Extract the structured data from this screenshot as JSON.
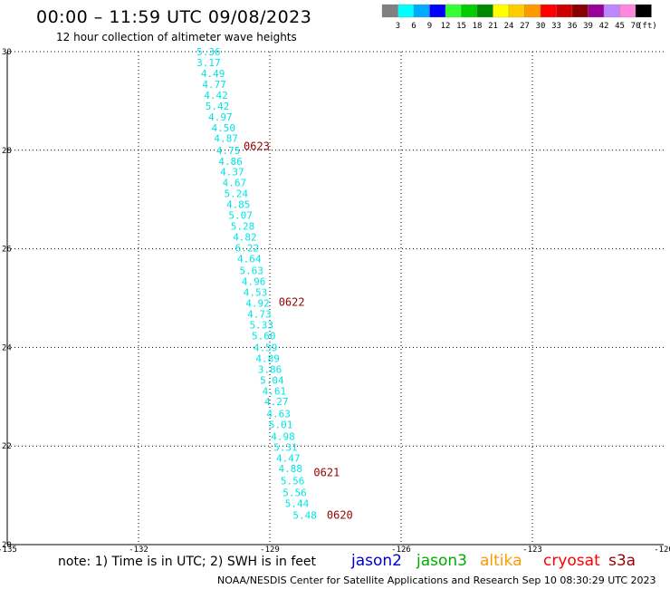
{
  "title": "00:00 – 11:59 UTC 09/08/2023",
  "subtitle": "12 hour collection of altimeter wave heights",
  "note": "note: 1) Time is in UTC; 2) SWH is in feet",
  "credit": "NOAA/NESDIS Center for Satellite Applications and Research   Sep 10 08:30:29 UTC 2023",
  "satellites": [
    {
      "name": "jason2",
      "color": "#0000cc"
    },
    {
      "name": "jason3",
      "color": "#00aa00"
    },
    {
      "name": "altika",
      "color": "#ff9900"
    },
    {
      "name": "cryosat",
      "color": "#ff0000"
    },
    {
      "name": "s3a",
      "color": "#990000"
    }
  ],
  "colorbar": {
    "unit": "(ft)",
    "colors": [
      "#808080",
      "#00ffff",
      "#00aaff",
      "#0000ff",
      "#33ff33",
      "#00cc00",
      "#008800",
      "#ffff00",
      "#ffcc00",
      "#ff9900",
      "#ff0000",
      "#cc0000",
      "#880000",
      "#990099",
      "#bb88ff",
      "#ff88dd",
      "#000000"
    ],
    "labels": [
      "3",
      "6",
      "9",
      "12",
      "15",
      "18",
      "21",
      "24",
      "27",
      "30",
      "33",
      "36",
      "39",
      "42",
      "45",
      "70"
    ]
  },
  "chart_data": {
    "type": "scatter",
    "title": "00:00 – 11:59 UTC 09/08/2023",
    "subtitle": "12 hour collection of altimeter wave heights",
    "xlabel": "",
    "ylabel": "",
    "xlim": [
      -135,
      -120
    ],
    "ylim": [
      20,
      30
    ],
    "xticks": [
      -135,
      -132,
      -129,
      -126,
      -123,
      -120
    ],
    "xtick_labels": [
      "-135",
      "-132",
      "-129",
      "-126",
      "-123",
      "-120"
    ],
    "yticks": [
      20,
      22,
      24,
      26,
      28,
      30
    ],
    "ytick_labels": [
      "20",
      "22",
      "24",
      "26",
      "28",
      "30"
    ],
    "grid": true,
    "points": [
      {
        "x": -130.4,
        "y": 30.0,
        "label": "5.36"
      },
      {
        "x": -130.4,
        "y": 29.78,
        "label": "3.17"
      },
      {
        "x": -130.3,
        "y": 29.56,
        "label": "4.49"
      },
      {
        "x": -130.27,
        "y": 29.34,
        "label": "4.77"
      },
      {
        "x": -130.23,
        "y": 29.12,
        "label": "4.42"
      },
      {
        "x": -130.2,
        "y": 28.9,
        "label": "5.42"
      },
      {
        "x": -130.13,
        "y": 28.68,
        "label": "4.97"
      },
      {
        "x": -130.06,
        "y": 28.46,
        "label": "4.50"
      },
      {
        "x": -130.0,
        "y": 28.24,
        "label": "4.87"
      },
      {
        "x": -129.95,
        "y": 28.0,
        "label": "4.75"
      },
      {
        "x": -129.9,
        "y": 27.78,
        "label": "4.86"
      },
      {
        "x": -129.86,
        "y": 27.56,
        "label": "4.37"
      },
      {
        "x": -129.81,
        "y": 27.34,
        "label": "4.67"
      },
      {
        "x": -129.77,
        "y": 27.12,
        "label": "5.24"
      },
      {
        "x": -129.72,
        "y": 26.9,
        "label": "4.85"
      },
      {
        "x": -129.67,
        "y": 26.68,
        "label": "5.07"
      },
      {
        "x": -129.62,
        "y": 26.46,
        "label": "5.28"
      },
      {
        "x": -129.57,
        "y": 26.24,
        "label": "4.82"
      },
      {
        "x": -129.52,
        "y": 26.02,
        "label": "6.22"
      },
      {
        "x": -129.47,
        "y": 25.8,
        "label": "4.64"
      },
      {
        "x": -129.42,
        "y": 25.56,
        "label": "5.63"
      },
      {
        "x": -129.37,
        "y": 25.34,
        "label": "4.96"
      },
      {
        "x": -129.33,
        "y": 25.12,
        "label": "4.53"
      },
      {
        "x": -129.28,
        "y": 24.9,
        "label": "4.92"
      },
      {
        "x": -129.24,
        "y": 24.68,
        "label": "4.73"
      },
      {
        "x": -129.19,
        "y": 24.46,
        "label": "5.33"
      },
      {
        "x": -129.14,
        "y": 24.24,
        "label": "5.60"
      },
      {
        "x": -129.1,
        "y": 24.0,
        "label": "4.59"
      },
      {
        "x": -129.05,
        "y": 23.78,
        "label": "4.89"
      },
      {
        "x": -129.0,
        "y": 23.56,
        "label": "3.86"
      },
      {
        "x": -128.95,
        "y": 23.34,
        "label": "5.04"
      },
      {
        "x": -128.9,
        "y": 23.12,
        "label": "4.61"
      },
      {
        "x": -128.85,
        "y": 22.9,
        "label": "4.27"
      },
      {
        "x": -128.8,
        "y": 22.66,
        "label": "4.63"
      },
      {
        "x": -128.75,
        "y": 22.44,
        "label": "5.01"
      },
      {
        "x": -128.7,
        "y": 22.2,
        "label": "4.98"
      },
      {
        "x": -128.64,
        "y": 21.98,
        "label": "5.31"
      },
      {
        "x": -128.58,
        "y": 21.76,
        "label": "4.47"
      },
      {
        "x": -128.53,
        "y": 21.54,
        "label": "4.88"
      },
      {
        "x": -128.48,
        "y": 21.3,
        "label": "5.56"
      },
      {
        "x": -128.43,
        "y": 21.06,
        "label": "5.56"
      },
      {
        "x": -128.38,
        "y": 20.84,
        "label": "5.44"
      },
      {
        "x": -128.2,
        "y": 20.6,
        "label": "5.48"
      }
    ],
    "time_labels": [
      {
        "x": -129.3,
        "y": 28.08,
        "label": "0623"
      },
      {
        "x": -128.5,
        "y": 24.92,
        "label": "0622"
      },
      {
        "x": -127.7,
        "y": 21.46,
        "label": "0621"
      },
      {
        "x": -127.4,
        "y": 20.6,
        "label": "0620"
      }
    ],
    "point_color": "#00e5e5",
    "time_label_color": "#990000"
  }
}
